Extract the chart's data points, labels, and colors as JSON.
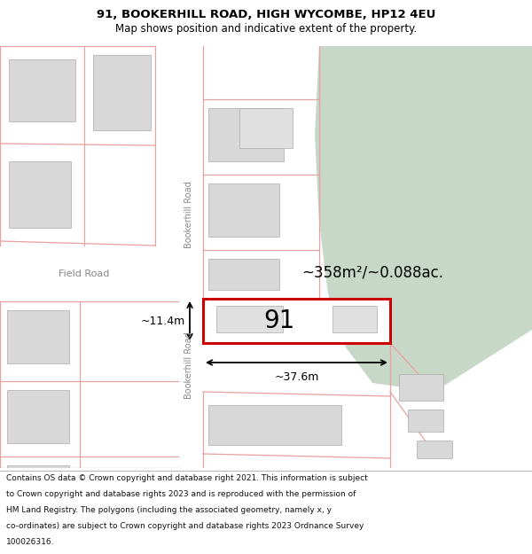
{
  "title_line1": "91, BOOKERHILL ROAD, HIGH WYCOMBE, HP12 4EU",
  "title_line2": "Map shows position and indicative extent of the property.",
  "footer_lines": [
    "Contains OS data © Crown copyright and database right 2021. This information is subject",
    "to Crown copyright and database rights 2023 and is reproduced with the permission of",
    "HM Land Registry. The polygons (including the associated geometry, namely x, y",
    "co-ordinates) are subject to Crown copyright and database rights 2023 Ordnance Survey",
    "100026316."
  ],
  "bg_map_color": "#f7f7f5",
  "road_color": "#ffffff",
  "building_color": "#d8d8d8",
  "building_edge": "#aaaaaa",
  "plot_edge_color": "#e8a0a0",
  "green_color": "#c8d8c8",
  "property_fill": "#ffffff",
  "property_edge": "#cc0000",
  "label_91": "91",
  "area_label": "~358m²/~0.088ac.",
  "width_label": "~37.6m",
  "height_label": "~11.4m",
  "road_label": "Bookerhill Road",
  "field_road_label": "Field Road",
  "title_fontsize": 9.5,
  "subtitle_fontsize": 8.5,
  "footer_fontsize": 6.5,
  "road_text_color": "#888888",
  "annotation_color": "#111111"
}
